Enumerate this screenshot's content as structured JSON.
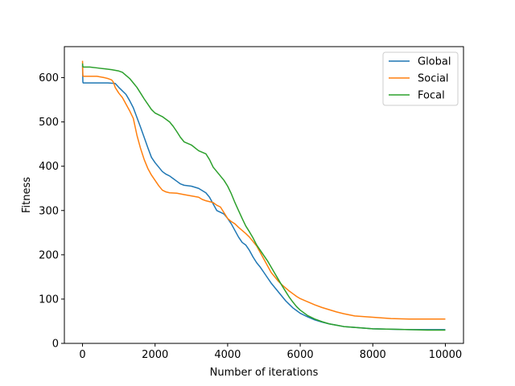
{
  "chart_data": {
    "type": "line",
    "xlabel": "Number of iterations",
    "ylabel": "Fitness",
    "xlim": [
      -500,
      10500
    ],
    "ylim": [
      0,
      670
    ],
    "xticks": [
      0,
      2000,
      4000,
      6000,
      8000,
      10000
    ],
    "yticks": [
      0,
      100,
      200,
      300,
      400,
      500,
      600
    ],
    "grid": false,
    "legend_position": "top-right",
    "series": [
      {
        "name": "Global",
        "color": "#1f77b4",
        "points": [
          [
            0,
            628
          ],
          [
            10,
            590
          ],
          [
            20,
            588
          ],
          [
            100,
            588
          ],
          [
            400,
            588
          ],
          [
            700,
            588
          ],
          [
            900,
            587
          ],
          [
            1000,
            578
          ],
          [
            1100,
            570
          ],
          [
            1200,
            562
          ],
          [
            1300,
            548
          ],
          [
            1400,
            532
          ],
          [
            1500,
            510
          ],
          [
            1600,
            488
          ],
          [
            1700,
            465
          ],
          [
            1800,
            442
          ],
          [
            1900,
            420
          ],
          [
            2000,
            408
          ],
          [
            2100,
            398
          ],
          [
            2200,
            388
          ],
          [
            2300,
            382
          ],
          [
            2400,
            378
          ],
          [
            2500,
            372
          ],
          [
            2600,
            366
          ],
          [
            2700,
            360
          ],
          [
            2800,
            357
          ],
          [
            3000,
            355
          ],
          [
            3200,
            350
          ],
          [
            3400,
            340
          ],
          [
            3500,
            330
          ],
          [
            3600,
            315
          ],
          [
            3700,
            300
          ],
          [
            3800,
            296
          ],
          [
            3900,
            292
          ],
          [
            4000,
            282
          ],
          [
            4100,
            270
          ],
          [
            4200,
            255
          ],
          [
            4300,
            240
          ],
          [
            4400,
            228
          ],
          [
            4500,
            222
          ],
          [
            4600,
            210
          ],
          [
            4700,
            195
          ],
          [
            4800,
            182
          ],
          [
            4900,
            172
          ],
          [
            5000,
            160
          ],
          [
            5100,
            148
          ],
          [
            5200,
            136
          ],
          [
            5300,
            126
          ],
          [
            5400,
            116
          ],
          [
            5500,
            106
          ],
          [
            5600,
            96
          ],
          [
            5700,
            88
          ],
          [
            5800,
            80
          ],
          [
            5900,
            74
          ],
          [
            6000,
            68
          ],
          [
            6200,
            60
          ],
          [
            6400,
            53
          ],
          [
            6600,
            48
          ],
          [
            6800,
            44
          ],
          [
            7000,
            41
          ],
          [
            7200,
            38
          ],
          [
            7500,
            36
          ],
          [
            8000,
            33
          ],
          [
            8500,
            32
          ],
          [
            9000,
            31
          ],
          [
            9500,
            31
          ],
          [
            10000,
            31
          ]
        ]
      },
      {
        "name": "Social",
        "color": "#ff7f0e",
        "points": [
          [
            0,
            638
          ],
          [
            10,
            605
          ],
          [
            20,
            603
          ],
          [
            100,
            603
          ],
          [
            400,
            603
          ],
          [
            600,
            600
          ],
          [
            700,
            598
          ],
          [
            800,
            595
          ],
          [
            850,
            590
          ],
          [
            900,
            578
          ],
          [
            1000,
            565
          ],
          [
            1100,
            555
          ],
          [
            1200,
            540
          ],
          [
            1300,
            525
          ],
          [
            1400,
            508
          ],
          [
            1500,
            470
          ],
          [
            1600,
            440
          ],
          [
            1700,
            415
          ],
          [
            1800,
            395
          ],
          [
            1900,
            380
          ],
          [
            2000,
            368
          ],
          [
            2100,
            356
          ],
          [
            2200,
            346
          ],
          [
            2300,
            342
          ],
          [
            2400,
            340
          ],
          [
            2600,
            339
          ],
          [
            2800,
            336
          ],
          [
            3000,
            333
          ],
          [
            3200,
            330
          ],
          [
            3300,
            325
          ],
          [
            3400,
            322
          ],
          [
            3600,
            318
          ],
          [
            3700,
            312
          ],
          [
            3800,
            308
          ],
          [
            3900,
            295
          ],
          [
            4000,
            282
          ],
          [
            4100,
            275
          ],
          [
            4200,
            270
          ],
          [
            4300,
            262
          ],
          [
            4400,
            255
          ],
          [
            4500,
            248
          ],
          [
            4600,
            240
          ],
          [
            4700,
            230
          ],
          [
            4800,
            220
          ],
          [
            4900,
            205
          ],
          [
            5000,
            190
          ],
          [
            5100,
            175
          ],
          [
            5200,
            160
          ],
          [
            5300,
            150
          ],
          [
            5400,
            140
          ],
          [
            5500,
            132
          ],
          [
            5600,
            125
          ],
          [
            5700,
            118
          ],
          [
            5800,
            112
          ],
          [
            5900,
            106
          ],
          [
            6000,
            101
          ],
          [
            6200,
            94
          ],
          [
            6400,
            87
          ],
          [
            6600,
            81
          ],
          [
            6800,
            76
          ],
          [
            7000,
            71
          ],
          [
            7200,
            67
          ],
          [
            7500,
            62
          ],
          [
            8000,
            59
          ],
          [
            8500,
            56
          ],
          [
            9000,
            55
          ],
          [
            9500,
            55
          ],
          [
            10000,
            55
          ]
        ]
      },
      {
        "name": "Focal",
        "color": "#2ca02c",
        "points": [
          [
            0,
            632
          ],
          [
            10,
            625
          ],
          [
            20,
            624
          ],
          [
            200,
            624
          ],
          [
            400,
            622
          ],
          [
            600,
            620
          ],
          [
            800,
            618
          ],
          [
            1000,
            615
          ],
          [
            1100,
            612
          ],
          [
            1200,
            605
          ],
          [
            1300,
            598
          ],
          [
            1400,
            588
          ],
          [
            1500,
            578
          ],
          [
            1600,
            565
          ],
          [
            1700,
            552
          ],
          [
            1800,
            540
          ],
          [
            1900,
            528
          ],
          [
            2000,
            520
          ],
          [
            2200,
            512
          ],
          [
            2400,
            500
          ],
          [
            2500,
            490
          ],
          [
            2600,
            478
          ],
          [
            2700,
            465
          ],
          [
            2800,
            455
          ],
          [
            3000,
            448
          ],
          [
            3200,
            435
          ],
          [
            3400,
            428
          ],
          [
            3500,
            415
          ],
          [
            3600,
            398
          ],
          [
            3700,
            388
          ],
          [
            3800,
            378
          ],
          [
            3900,
            368
          ],
          [
            4000,
            355
          ],
          [
            4100,
            338
          ],
          [
            4200,
            318
          ],
          [
            4300,
            300
          ],
          [
            4400,
            282
          ],
          [
            4500,
            265
          ],
          [
            4600,
            252
          ],
          [
            4700,
            238
          ],
          [
            4800,
            222
          ],
          [
            4900,
            210
          ],
          [
            5000,
            198
          ],
          [
            5100,
            186
          ],
          [
            5200,
            172
          ],
          [
            5300,
            158
          ],
          [
            5400,
            144
          ],
          [
            5500,
            130
          ],
          [
            5600,
            117
          ],
          [
            5700,
            104
          ],
          [
            5800,
            93
          ],
          [
            5900,
            83
          ],
          [
            6000,
            75
          ],
          [
            6200,
            63
          ],
          [
            6400,
            55
          ],
          [
            6600,
            49
          ],
          [
            6800,
            44
          ],
          [
            7000,
            41
          ],
          [
            7200,
            38
          ],
          [
            7500,
            36
          ],
          [
            8000,
            33
          ],
          [
            8500,
            32
          ],
          [
            9000,
            31
          ],
          [
            9500,
            30
          ],
          [
            10000,
            30
          ]
        ]
      }
    ]
  }
}
